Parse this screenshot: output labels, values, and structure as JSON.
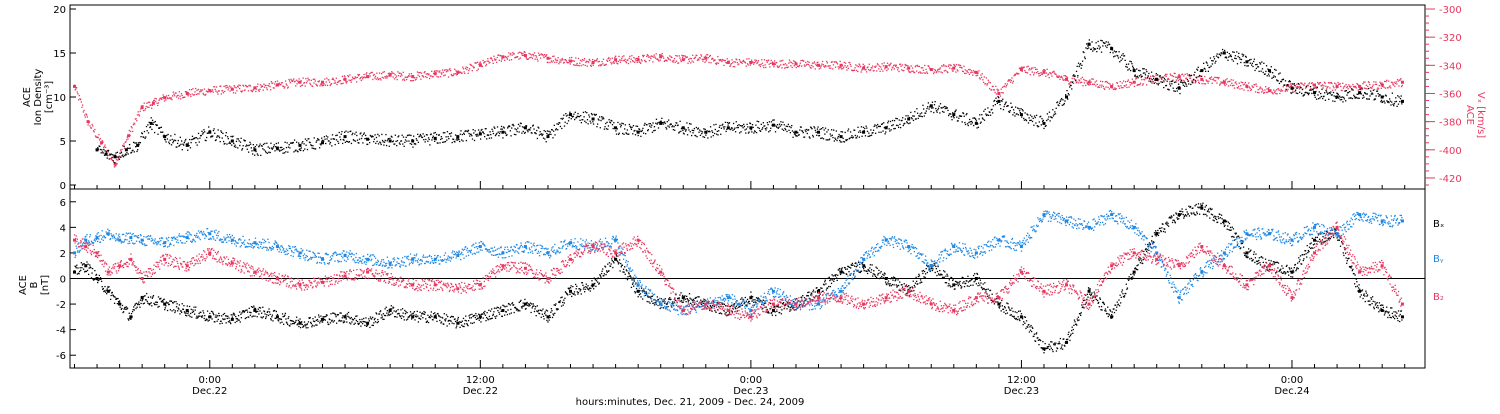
{
  "chart_data": [
    {
      "type": "scatter",
      "panel": "top",
      "ylabel": [
        "ACE",
        "Ion Density",
        "[cm⁻³]"
      ],
      "ylim": [
        0,
        20
      ],
      "yticks": [
        0,
        5,
        10,
        15,
        20
      ],
      "y2label": [
        "ACE",
        "Vₓ [km/s]"
      ],
      "y2lim": [
        -425,
        -300
      ],
      "y2ticks": [
        -420,
        -400,
        -380,
        -360,
        -340,
        -320,
        -300
      ],
      "x_unit": "hours since 2009-12-21 00:00",
      "series": [
        {
          "name": "ACE Ion Density",
          "axis": "left",
          "color": "#000000",
          "x": [
            19.0,
            19.4,
            19.8,
            20.3,
            20.8,
            21.4,
            22.0,
            23.0,
            24.0,
            25.0,
            26.0,
            27.0,
            28.0,
            29.0,
            30.0,
            31.0,
            32.0,
            33.0,
            34.0,
            35.0,
            36.0,
            37.0,
            38.0,
            39.0,
            40.0,
            41.0,
            42.0,
            43.0,
            44.0,
            45.0,
            46.0,
            47.0,
            48.0,
            49.0,
            50.0,
            51.0,
            52.0,
            53.0,
            54.0,
            55.0,
            56.0,
            57.0,
            58.0,
            59.0,
            60.0,
            61.0,
            62.0,
            63.0,
            64.0,
            65.0,
            66.0,
            67.0,
            68.0,
            69.0,
            70.0,
            71.0,
            72.0,
            73.0,
            74.0,
            75.0,
            76.0,
            76.9
          ],
          "values": [
            4.0,
            3.5,
            3.2,
            4.0,
            4.5,
            7.0,
            5.5,
            4.5,
            6.0,
            5.0,
            4.0,
            4.2,
            4.5,
            4.8,
            5.5,
            5.2,
            5.0,
            5.0,
            5.3,
            5.5,
            5.8,
            6.0,
            6.5,
            5.5,
            8.0,
            7.5,
            6.5,
            6.0,
            7.0,
            6.5,
            6.0,
            6.5,
            6.5,
            6.8,
            6.0,
            6.0,
            5.5,
            6.0,
            6.5,
            7.5,
            9.0,
            8.0,
            7.0,
            9.5,
            8.0,
            7.0,
            10.0,
            16.0,
            15.5,
            13.0,
            12.0,
            11.0,
            13.0,
            15.0,
            14.0,
            13.0,
            11.0,
            10.5,
            10.0,
            10.5,
            10.0,
            9.5
          ]
        },
        {
          "name": "ACE Vx",
          "axis": "right",
          "color": "#e8375f",
          "x": [
            18.0,
            18.6,
            19.2,
            19.8,
            20.4,
            21.0,
            21.5,
            22.0,
            23.0,
            24.0,
            25.0,
            26.0,
            27.0,
            28.0,
            29.0,
            30.0,
            31.0,
            32.0,
            33.0,
            34.0,
            35.0,
            36.0,
            37.0,
            38.0,
            39.0,
            40.0,
            41.0,
            42.0,
            43.0,
            44.0,
            45.0,
            46.0,
            47.0,
            48.0,
            49.0,
            50.0,
            51.0,
            52.0,
            53.0,
            54.0,
            55.0,
            56.0,
            57.0,
            58.0,
            59.0,
            60.0,
            61.0,
            62.0,
            63.0,
            64.0,
            65.0,
            66.0,
            67.0,
            68.0,
            69.0,
            70.0,
            71.0,
            72.0,
            73.0,
            74.0,
            75.0,
            76.0,
            76.9
          ],
          "values": [
            -355,
            -380,
            -395,
            -410,
            -390,
            -370,
            -367,
            -363,
            -360,
            -358,
            -357,
            -356,
            -354,
            -352,
            -352,
            -350,
            -348,
            -347,
            -348,
            -346,
            -345,
            -340,
            -334,
            -333,
            -335,
            -337,
            -338,
            -336,
            -336,
            -334,
            -336,
            -335,
            -338,
            -338,
            -339,
            -339,
            -340,
            -340,
            -342,
            -341,
            -342,
            -343,
            -342,
            -345,
            -360,
            -343,
            -345,
            -350,
            -352,
            -355,
            -352,
            -350,
            -348,
            -350,
            -352,
            -355,
            -358,
            -356,
            -354,
            -355,
            -355,
            -354,
            -352
          ]
        }
      ]
    },
    {
      "type": "scatter",
      "panel": "bottom",
      "ylabel": [
        "ACE",
        "B",
        "[nT]"
      ],
      "ylim": [
        -7,
        7
      ],
      "yticks": [
        -6,
        -4,
        -2,
        0,
        2,
        4,
        6
      ],
      "x_unit": "hours since 2009-12-21 00:00",
      "x": [
        18.0,
        18.5,
        19.0,
        19.5,
        20.0,
        20.5,
        21.0,
        22.0,
        23.0,
        24.0,
        25.0,
        26.0,
        27.0,
        28.0,
        29.0,
        30.0,
        31.0,
        32.0,
        33.0,
        34.0,
        35.0,
        36.0,
        37.0,
        38.0,
        39.0,
        40.0,
        41.0,
        42.0,
        43.0,
        44.0,
        45.0,
        46.0,
        47.0,
        48.0,
        49.0,
        50.0,
        51.0,
        52.0,
        53.0,
        54.0,
        55.0,
        56.0,
        57.0,
        58.0,
        59.0,
        60.0,
        61.0,
        62.0,
        63.0,
        64.0,
        65.0,
        66.0,
        67.0,
        68.0,
        69.0,
        70.0,
        71.0,
        72.0,
        73.0,
        74.0,
        75.0,
        76.0,
        76.9
      ],
      "series": [
        {
          "name": "Bx",
          "color": "#000000",
          "values": [
            0.5,
            1.0,
            0.0,
            -1.0,
            -2.0,
            -3.0,
            -1.5,
            -2.0,
            -2.5,
            -3.0,
            -3.2,
            -2.5,
            -3.0,
            -3.5,
            -3.2,
            -3.0,
            -3.5,
            -2.5,
            -3.0,
            -3.0,
            -3.5,
            -3.0,
            -2.5,
            -2.0,
            -3.0,
            -1.0,
            -0.5,
            1.5,
            -1.0,
            -2.0,
            -1.5,
            -2.0,
            -2.5,
            -1.5,
            -2.5,
            -2.0,
            -1.0,
            0.5,
            1.0,
            0.0,
            -1.0,
            1.0,
            -0.5,
            0.0,
            -2.0,
            -3.0,
            -5.5,
            -5.0,
            -1.0,
            -3.0,
            0.5,
            3.5,
            5.0,
            5.5,
            4.5,
            2.0,
            1.0,
            0.5,
            3.0,
            3.5,
            -1.0,
            -2.5,
            -3.0
          ]
        },
        {
          "name": "By",
          "color": "#1e88e5",
          "values": [
            2.0,
            3.0,
            3.2,
            3.5,
            3.0,
            3.2,
            3.0,
            2.8,
            3.2,
            3.5,
            3.0,
            2.8,
            2.5,
            2.0,
            1.5,
            1.8,
            1.5,
            1.2,
            1.5,
            1.5,
            1.8,
            2.5,
            2.0,
            2.5,
            2.0,
            2.8,
            2.5,
            3.0,
            -0.5,
            -2.0,
            -2.5,
            -2.0,
            -1.5,
            -2.5,
            -1.0,
            -2.0,
            -2.0,
            -1.0,
            1.5,
            3.0,
            2.5,
            1.0,
            2.5,
            2.0,
            3.0,
            2.5,
            5.0,
            4.5,
            4.0,
            5.0,
            4.0,
            2.0,
            -1.5,
            0.5,
            2.0,
            3.5,
            3.5,
            3.0,
            4.0,
            3.5,
            5.0,
            4.5,
            4.5
          ]
        },
        {
          "name": "Bz",
          "color": "#e8375f",
          "values": [
            3.0,
            2.5,
            2.0,
            0.5,
            1.0,
            1.5,
            0.0,
            1.5,
            1.0,
            2.0,
            1.2,
            0.5,
            0.0,
            -0.5,
            -0.3,
            0.2,
            0.5,
            0.0,
            -0.5,
            -0.5,
            -0.8,
            -0.5,
            1.0,
            0.8,
            0.0,
            1.5,
            2.5,
            2.0,
            3.0,
            0.5,
            -2.5,
            -2.0,
            -2.5,
            -3.0,
            -2.0,
            -2.0,
            -1.5,
            -1.5,
            -2.0,
            -1.5,
            -1.0,
            -2.0,
            -2.5,
            -1.5,
            -1.5,
            0.5,
            -1.0,
            -0.5,
            -2.0,
            1.0,
            2.0,
            1.5,
            1.0,
            2.5,
            1.0,
            -0.5,
            1.0,
            -1.5,
            2.0,
            4.0,
            0.5,
            1.0,
            -2.0
          ]
        }
      ],
      "legend": [
        "Bx",
        "By",
        "Bz"
      ]
    }
  ],
  "labels": {
    "top_left_title": "ACE",
    "top_left_sub": "Ion Density",
    "top_left_unit": "[cm⁻³]",
    "top_right_title": "ACE",
    "top_right_unit": "Vₓ [km/s]",
    "bottom_left_title": "ACE",
    "bottom_left_sub": "B",
    "bottom_left_unit": "[nT]",
    "legend_bx": "Bₓ",
    "legend_by": "Bᵧ",
    "legend_bz": "B₂"
  },
  "xaxis": {
    "ticks": [
      {
        "h": 24,
        "time": "0:00",
        "date": "Dec.22"
      },
      {
        "h": 36,
        "time": "12:00",
        "date": "Dec.22"
      },
      {
        "h": 48,
        "time": "0:00",
        "date": "Dec.23"
      },
      {
        "h": 60,
        "time": "12:00",
        "date": "Dec.23"
      },
      {
        "h": 72,
        "time": "0:00",
        "date": "Dec.24"
      }
    ],
    "xlabel": "hours:minutes, Dec. 21, 2009 - Dec. 24, 2009"
  }
}
